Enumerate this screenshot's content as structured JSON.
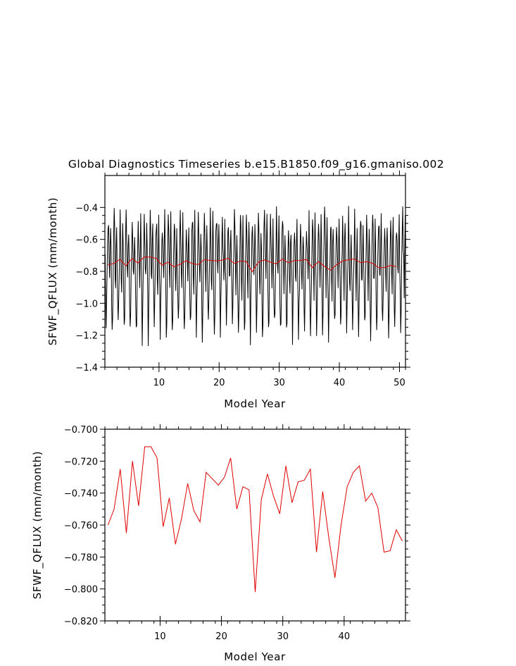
{
  "figure": {
    "title": "Global Diagnostics Timeseries b.e15.B1850.f09_g16.gmaniso.002"
  },
  "chart_data": [
    {
      "type": "line",
      "xlabel": "Model Year",
      "ylabel": "SFWF_QFLUX (mm/month)",
      "xlim": [
        1,
        51
      ],
      "ylim": [
        -1.4,
        -0.2
      ],
      "xticks": [
        10,
        20,
        30,
        40,
        50
      ],
      "yticks": [
        -1.4,
        -1.2,
        -1.0,
        -0.8,
        -0.6,
        -0.4
      ],
      "ytick_labels": [
        "−1.4",
        "−1.2",
        "−1.0",
        "−0.8",
        "−0.6",
        "−0.4"
      ],
      "grid": false,
      "series": [
        {
          "kind": "monthly",
          "color": "#000000",
          "x_start": 1.0417,
          "x_step": 0.08333,
          "seasonal_cycle": [
            -0.72,
            -0.95,
            -1.18,
            -1.05,
            -0.82,
            -0.62,
            -0.47,
            -0.58,
            -0.78,
            -0.9,
            -0.68,
            -0.5
          ],
          "noise_amplitude": 0.09
        },
        {
          "kind": "annual-mean",
          "color": "#e00000",
          "x": [
            1.5,
            2.5,
            3.5,
            4.5,
            5.5,
            6.5,
            7.5,
            8.5,
            9.5,
            10.5,
            11.5,
            12.5,
            13.5,
            14.5,
            15.5,
            16.5,
            17.5,
            18.5,
            19.5,
            20.5,
            21.5,
            22.5,
            23.5,
            24.5,
            25.5,
            26.5,
            27.5,
            28.5,
            29.5,
            30.5,
            31.5,
            32.5,
            33.5,
            34.5,
            35.5,
            36.5,
            37.5,
            38.5,
            39.5,
            40.5,
            41.5,
            42.5,
            43.5,
            44.5,
            45.5,
            46.5,
            47.5,
            48.5,
            49.5
          ],
          "values": [
            -0.76,
            -0.75,
            -0.725,
            -0.765,
            -0.72,
            -0.748,
            -0.711,
            -0.711,
            -0.718,
            -0.761,
            -0.743,
            -0.772,
            -0.756,
            -0.734,
            -0.751,
            -0.758,
            -0.727,
            -0.731,
            -0.735,
            -0.73,
            -0.718,
            -0.75,
            -0.736,
            -0.738,
            -0.802,
            -0.744,
            -0.728,
            -0.742,
            -0.753,
            -0.723,
            -0.746,
            -0.733,
            -0.732,
            -0.725,
            -0.777,
            -0.739,
            -0.768,
            -0.793,
            -0.76,
            -0.736,
            -0.727,
            -0.723,
            -0.745,
            -0.74,
            -0.749,
            -0.777,
            -0.776,
            -0.763,
            -0.77
          ]
        }
      ]
    },
    {
      "type": "line",
      "xlabel": "Model Year",
      "ylabel": "SFWF_QFLUX (mm/month)",
      "xlim": [
        1,
        50
      ],
      "ylim": [
        -0.82,
        -0.7
      ],
      "xticks": [
        10,
        20,
        30,
        40
      ],
      "yticks": [
        -0.82,
        -0.8,
        -0.78,
        -0.76,
        -0.74,
        -0.72,
        -0.7
      ],
      "ytick_labels": [
        "−0.820",
        "−0.800",
        "−0.780",
        "−0.760",
        "−0.740",
        "−0.720",
        "−0.700"
      ],
      "grid": false,
      "series": [
        {
          "kind": "annual-mean",
          "color": "#e00000",
          "x": [
            1.5,
            2.5,
            3.5,
            4.5,
            5.5,
            6.5,
            7.5,
            8.5,
            9.5,
            10.5,
            11.5,
            12.5,
            13.5,
            14.5,
            15.5,
            16.5,
            17.5,
            18.5,
            19.5,
            20.5,
            21.5,
            22.5,
            23.5,
            24.5,
            25.5,
            26.5,
            27.5,
            28.5,
            29.5,
            30.5,
            31.5,
            32.5,
            33.5,
            34.5,
            35.5,
            36.5,
            37.5,
            38.5,
            39.5,
            40.5,
            41.5,
            42.5,
            43.5,
            44.5,
            45.5,
            46.5,
            47.5,
            48.5,
            49.5
          ],
          "values": [
            -0.76,
            -0.75,
            -0.725,
            -0.765,
            -0.72,
            -0.748,
            -0.711,
            -0.711,
            -0.718,
            -0.761,
            -0.743,
            -0.772,
            -0.756,
            -0.734,
            -0.751,
            -0.758,
            -0.727,
            -0.731,
            -0.735,
            -0.73,
            -0.718,
            -0.75,
            -0.736,
            -0.738,
            -0.802,
            -0.744,
            -0.728,
            -0.742,
            -0.753,
            -0.723,
            -0.746,
            -0.733,
            -0.732,
            -0.725,
            -0.777,
            -0.739,
            -0.768,
            -0.793,
            -0.76,
            -0.736,
            -0.727,
            -0.723,
            -0.745,
            -0.74,
            -0.749,
            -0.777,
            -0.776,
            -0.763,
            -0.77
          ]
        }
      ]
    }
  ]
}
